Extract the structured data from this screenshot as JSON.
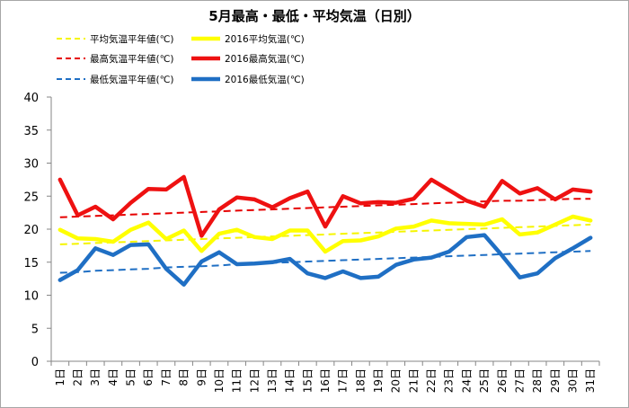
{
  "chart_data": {
    "type": "line",
    "title": "5月最高・最低・平均気温（日別）",
    "categories": [
      "1日",
      "2日",
      "3日",
      "4日",
      "5日",
      "6日",
      "7日",
      "8日",
      "9日",
      "10日",
      "11日",
      "12日",
      "13日",
      "14日",
      "15日",
      "16日",
      "17日",
      "18日",
      "19日",
      "20日",
      "21日",
      "22日",
      "23日",
      "24日",
      "25日",
      "26日",
      "27日",
      "28日",
      "29日",
      "30日",
      "31日"
    ],
    "ylim": [
      0,
      40
    ],
    "yticks": [
      0,
      5,
      10,
      15,
      20,
      25,
      30,
      35,
      40
    ],
    "grid": false,
    "legend_placement": "top-left",
    "series": [
      {
        "name": "平均気温平年値(℃)",
        "style": "dashed",
        "color": "#f5f500",
        "values": [
          17.7,
          17.8,
          17.9,
          18.0,
          18.1,
          18.2,
          18.3,
          18.4,
          18.5,
          18.6,
          18.7,
          18.8,
          18.9,
          19.0,
          19.1,
          19.2,
          19.3,
          19.4,
          19.5,
          19.6,
          19.7,
          19.8,
          19.9,
          20.0,
          20.1,
          20.2,
          20.3,
          20.4,
          20.5,
          20.6,
          20.7
        ]
      },
      {
        "name": "2016平均気温(℃)",
        "style": "solid",
        "color": "#ffff00",
        "values": [
          19.9,
          18.6,
          18.5,
          18.1,
          19.9,
          21.0,
          18.5,
          19.8,
          16.7,
          19.3,
          19.9,
          18.8,
          18.5,
          19.8,
          19.8,
          16.6,
          18.2,
          18.3,
          18.9,
          20.1,
          20.4,
          21.3,
          20.9,
          20.8,
          20.7,
          21.5,
          19.2,
          19.5,
          20.7,
          21.9,
          21.3
        ]
      },
      {
        "name": "最高気温平年値(℃)",
        "style": "dashed",
        "color": "#e60000",
        "values": [
          21.8,
          21.9,
          22.0,
          22.1,
          22.2,
          22.3,
          22.4,
          22.5,
          22.6,
          22.7,
          22.8,
          22.9,
          23.0,
          23.1,
          23.2,
          23.3,
          23.4,
          23.5,
          23.6,
          23.7,
          23.8,
          23.9,
          24.0,
          24.1,
          24.2,
          24.3,
          24.3,
          24.4,
          24.5,
          24.6,
          24.6
        ]
      },
      {
        "name": "2016最高気温(℃)",
        "style": "solid",
        "color": "#ee1111",
        "values": [
          27.5,
          22.1,
          23.4,
          21.5,
          24.0,
          26.1,
          26.0,
          27.9,
          19.0,
          23.0,
          24.8,
          24.5,
          23.3,
          24.7,
          25.7,
          20.4,
          25.0,
          23.9,
          24.1,
          24.0,
          24.6,
          27.5,
          25.9,
          24.3,
          23.4,
          27.3,
          25.4,
          26.2,
          24.5,
          26.0,
          25.7
        ]
      },
      {
        "name": "最低気温平年値(℃)",
        "style": "dashed",
        "color": "#1f6fc4",
        "values": [
          13.4,
          13.5,
          13.7,
          13.8,
          13.9,
          14.0,
          14.2,
          14.3,
          14.4,
          14.5,
          14.7,
          14.8,
          14.9,
          15.0,
          15.1,
          15.2,
          15.3,
          15.4,
          15.5,
          15.6,
          15.7,
          15.8,
          15.9,
          16.0,
          16.1,
          16.2,
          16.3,
          16.4,
          16.5,
          16.6,
          16.7
        ]
      },
      {
        "name": "2016最低気温(℃)",
        "style": "solid",
        "color": "#1f6fc4",
        "values": [
          12.3,
          13.8,
          17.1,
          16.1,
          17.6,
          17.7,
          14.0,
          11.6,
          15.1,
          16.5,
          14.7,
          14.8,
          15.0,
          15.5,
          13.3,
          12.6,
          13.6,
          12.6,
          12.8,
          14.6,
          15.4,
          15.7,
          16.6,
          18.8,
          19.1,
          16.0,
          12.7,
          13.3,
          15.6,
          17.1,
          18.7
        ]
      }
    ]
  }
}
